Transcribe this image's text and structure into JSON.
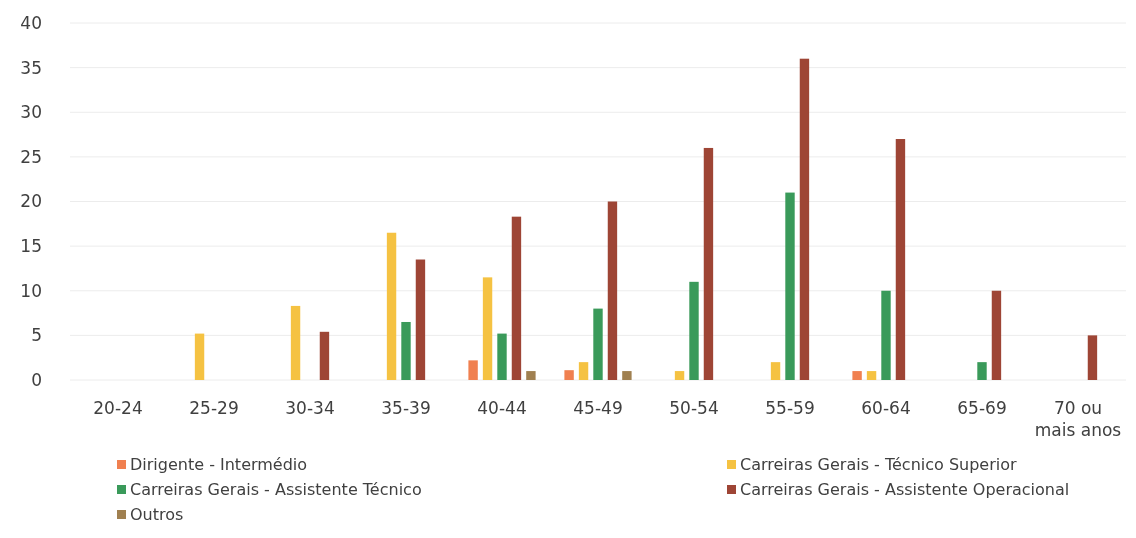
{
  "chart_data": {
    "type": "bar",
    "categories": [
      "20-24",
      "25-29",
      "30-34",
      "35-39",
      "40-44",
      "45-49",
      "50-54",
      "55-59",
      "60-64",
      "65-69",
      "70 ou mais anos"
    ],
    "series": [
      {
        "name": "Dirigente - Intermédio",
        "color": "#f08050",
        "values": [
          null,
          null,
          null,
          null,
          2.2,
          1.1,
          null,
          null,
          1,
          null,
          null
        ]
      },
      {
        "name": "Carreiras Gerais - Técnico Superior",
        "color": "#f5c242",
        "values": [
          null,
          5.2,
          8.3,
          16.5,
          11.5,
          2,
          1,
          2,
          1,
          null,
          null
        ]
      },
      {
        "name": "Carreiras Gerais - Assistente Técnico",
        "color": "#3a9a5a",
        "values": [
          null,
          null,
          null,
          6.5,
          5.2,
          8,
          11,
          21,
          10,
          2,
          null
        ]
      },
      {
        "name": "Carreiras Gerais - Assistente Operacional",
        "color": "#9e4535",
        "values": [
          null,
          null,
          5.4,
          13.5,
          18.3,
          20,
          26,
          36,
          27,
          10,
          5
        ]
      },
      {
        "name": "Outros",
        "color": "#a08050",
        "values": [
          null,
          null,
          null,
          null,
          1,
          1,
          null,
          null,
          null,
          null,
          null
        ]
      }
    ],
    "ylim": [
      0,
      40
    ],
    "yticks": [
      0,
      5,
      10,
      15,
      20,
      25,
      30,
      35,
      40
    ],
    "grid": "y",
    "legend": "bottom"
  }
}
